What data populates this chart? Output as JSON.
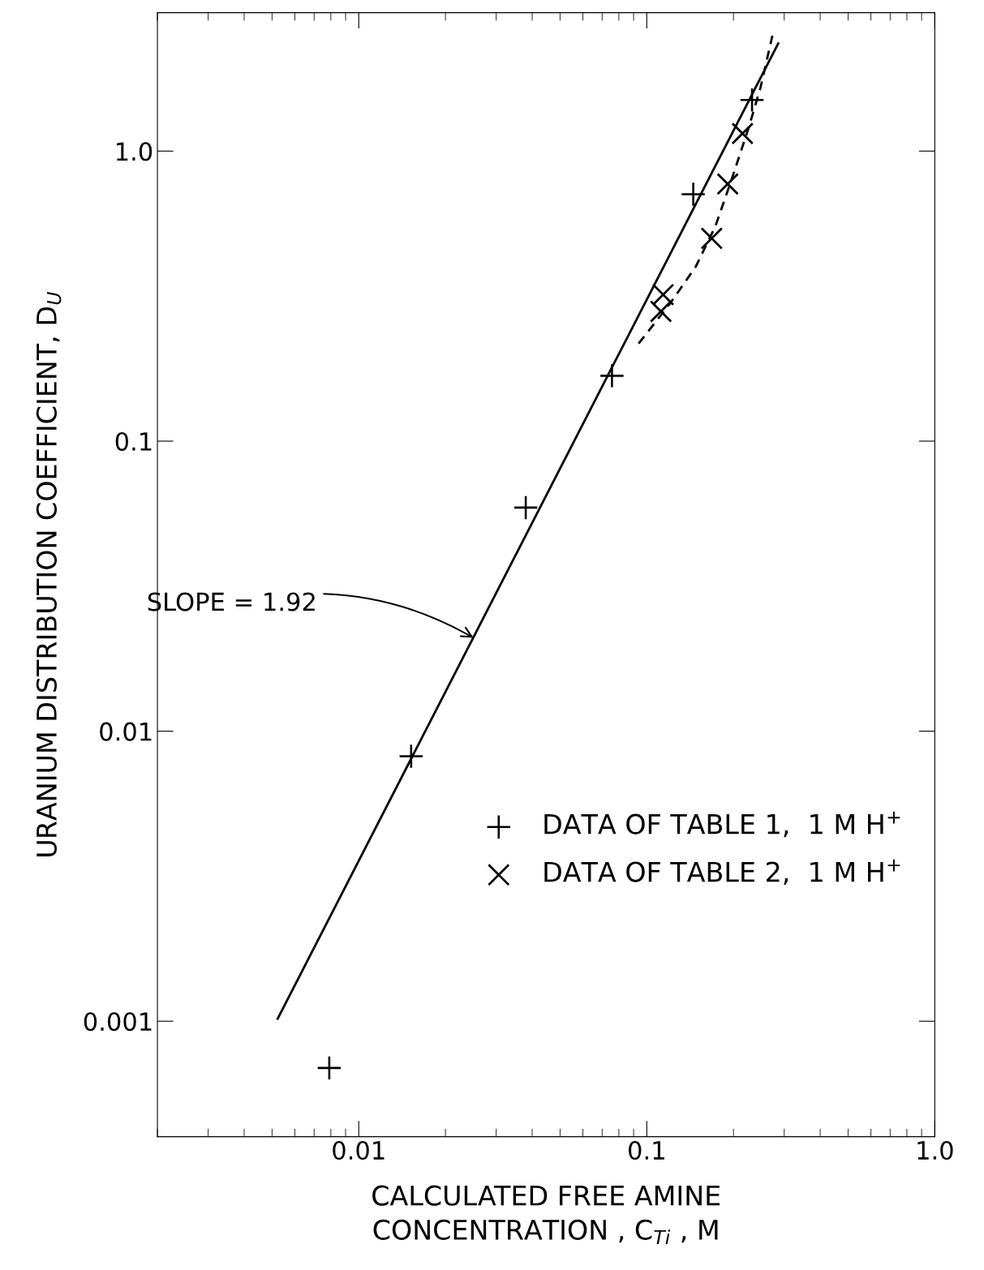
{
  "chart_data": {
    "type": "scatter",
    "xlabel": "CALCULATED FREE AMINE\nCONCENTRATION , C$_{Ti}$ , M",
    "ylabel": "URANIUM DISTRIBUTION COEFFICIENT, D$_{U}$",
    "log": "xy",
    "xlim": [
      0.002,
      1.0
    ],
    "ylim": [
      0.0004,
      3
    ],
    "xticks": [
      {
        "value": 0.01,
        "label": "0.01"
      },
      {
        "value": 0.1,
        "label": "0.1"
      },
      {
        "value": 1.0,
        "label": "1.0"
      }
    ],
    "yticks": [
      {
        "value": 0.001,
        "label": "0.001"
      },
      {
        "value": 0.01,
        "label": "0.01"
      },
      {
        "value": 0.1,
        "label": "0.1"
      },
      {
        "value": 1.0,
        "label": "1.0"
      }
    ],
    "grid": false,
    "legend": "bottom right",
    "series": [
      {
        "name": "DATA OF TABLE 1,  1 M H$^{+}$",
        "color": "#000000",
        "x": [
          0.0079,
          0.0152,
          0.038,
          0.0757,
          0.145,
          0.232
        ],
        "values": [
          0.00069,
          0.0082,
          0.059,
          0.168,
          0.71,
          1.5
        ]
      },
      {
        "name": "DATA OF TABLE 2,  1 M H$^{+}$",
        "marker": "cross",
        "color": "#000000",
        "x": [
          0.112,
          0.114,
          0.168,
          0.191,
          0.215
        ],
        "values": [
          0.28,
          0.32,
          0.5,
          0.77,
          1.15
        ]
      },
      {
        "type": "line",
        "line_style": "solid",
        "color": "#000000",
        "x": [
          0.00523,
          0.286
        ],
        "values": [
          0.00102,
          2.35
        ]
      },
      {
        "type": "line",
        "line_style": "dashed",
        "color": "#000000",
        "x": [
          0.0937,
          0.121,
          0.148,
          0.173,
          0.198,
          0.225,
          0.248,
          0.273
        ],
        "values": [
          0.217,
          0.3,
          0.4,
          0.55,
          0.81,
          1.19,
          1.65,
          2.5
        ]
      }
    ],
    "annotations": [
      {
        "text": "SLOPE = 1.92",
        "x": 0.025,
        "y": 0.021
      }
    ]
  }
}
